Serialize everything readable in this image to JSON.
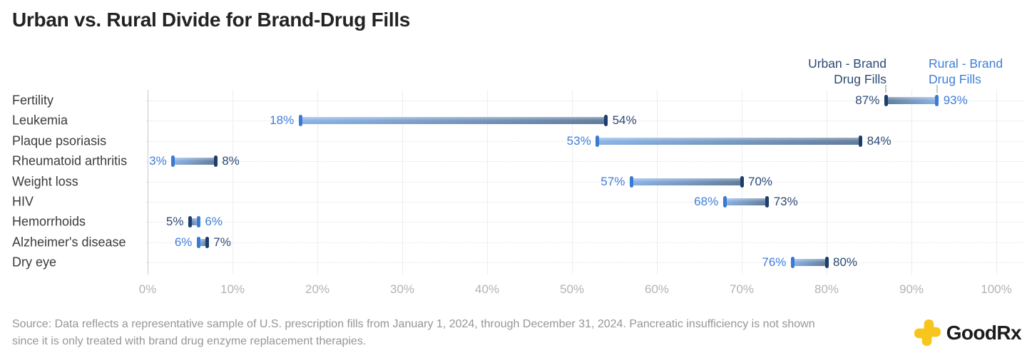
{
  "title": "Urban vs. Rural Divide for Brand-Drug Fills",
  "legend": {
    "urban": {
      "line1": "Urban - Brand",
      "line2": "Drug Fills"
    },
    "rural": {
      "line1": "Rural - Brand",
      "line2": "Drug Fills"
    }
  },
  "colors": {
    "urban_cap": "#1d3d6d",
    "urban_text": "#2b4a74",
    "urban_body": "#64809f",
    "rural_cap": "#3a7ad3",
    "rural_text": "#3f7ed8",
    "rural_body": "#8fb7ea",
    "grid_line": "#ededf0",
    "axis_label": "#b3b3b8",
    "brand_yellow": "#F8C51C"
  },
  "chart_data": {
    "type": "bar",
    "subtype": "dumbbell-range",
    "title": "Urban vs. Rural Divide for Brand-Drug Fills",
    "categories": [
      "Fertility",
      "Leukemia",
      "Plaque psoriasis",
      "Rheumatoid arthritis",
      "Weight loss",
      "HIV",
      "Hemorrhoids",
      "Alzheimer's disease",
      "Dry eye"
    ],
    "series": [
      {
        "name": "Urban - Brand Drug Fills",
        "values": [
          87,
          54,
          84,
          8,
          70,
          73,
          5,
          7,
          80
        ]
      },
      {
        "name": "Rural - Brand Drug Fills",
        "values": [
          93,
          18,
          53,
          3,
          57,
          68,
          6,
          6,
          76
        ]
      }
    ],
    "value_suffix": "%",
    "x_axis": {
      "min": 0,
      "max": 100,
      "tick_values": [
        0,
        10,
        20,
        30,
        40,
        50,
        60,
        70,
        80,
        90,
        100
      ],
      "tick_labels": [
        "0%",
        "10%",
        "20%",
        "30%",
        "40%",
        "50%",
        "60%",
        "70%",
        "80%",
        "90%",
        "100%"
      ]
    },
    "legend_position": "top-right",
    "grid": "vertical solid lines at each 10%, dotted horizontal line per category row"
  },
  "footer": {
    "source_line1": "Source: Data reflects a representative sample of U.S. prescription fills from January 1, 2024, through December 31, 2024. Pancreatic insufficiency is not shown",
    "source_line2": "since it is only treated with brand drug enzyme replacement therapies.",
    "brand": "GoodRx"
  }
}
